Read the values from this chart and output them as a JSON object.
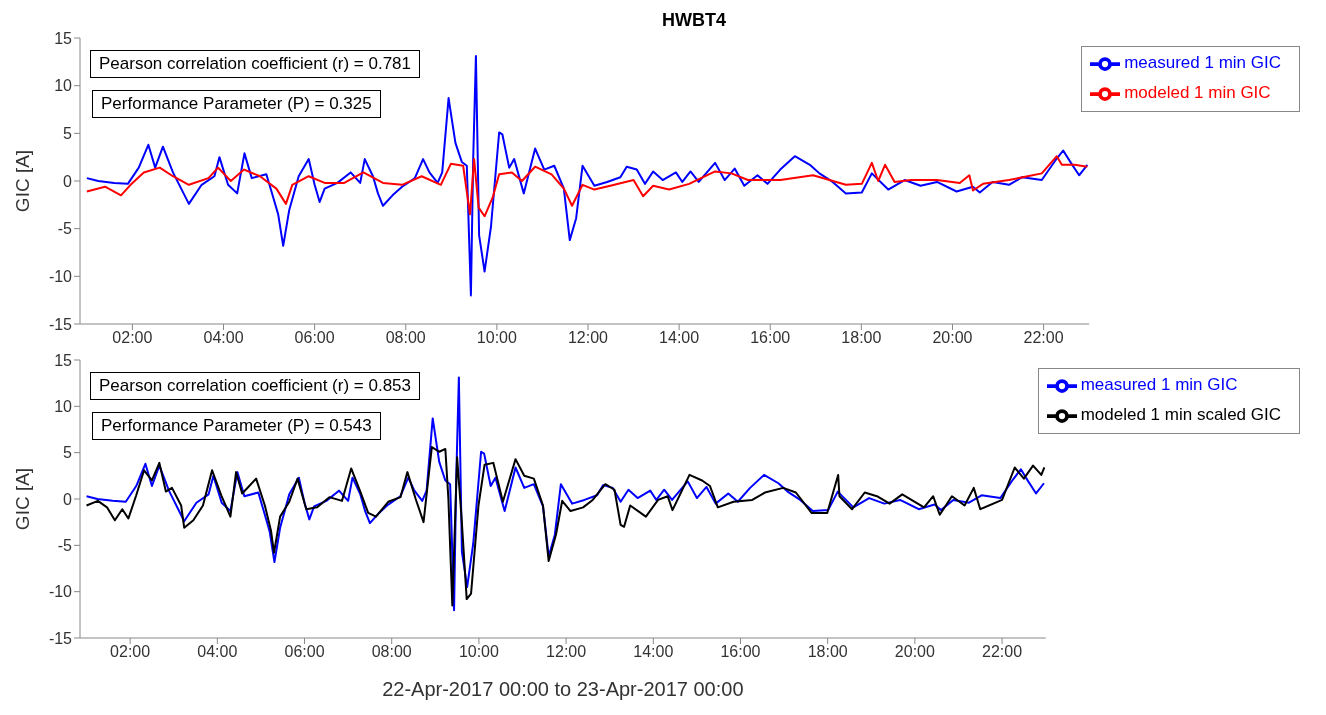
{
  "chart_data": [
    {
      "type": "line",
      "title": "HWBT4",
      "ylabel": "GIC [A]",
      "xlim": [
        0.85,
        23
      ],
      "ylim": [
        -15,
        15
      ],
      "yticks": [
        -15,
        -10,
        -5,
        0,
        5,
        10,
        15
      ],
      "xticks": [
        {
          "value": 2,
          "label": "02:00"
        },
        {
          "value": 4,
          "label": "04:00"
        },
        {
          "value": 6,
          "label": "06:00"
        },
        {
          "value": 8,
          "label": "08:00"
        },
        {
          "value": 10,
          "label": "10:00"
        },
        {
          "value": 12,
          "label": "12:00"
        },
        {
          "value": 14,
          "label": "14:00"
        },
        {
          "value": 16,
          "label": "16:00"
        },
        {
          "value": 18,
          "label": "18:00"
        },
        {
          "value": 20,
          "label": "20:00"
        },
        {
          "value": 22,
          "label": "22:00"
        }
      ],
      "grid": false,
      "legend": "top right",
      "marker": "none",
      "line_style": "solid",
      "annotations": [
        "Pearson correlation coefficient (r) = 0.781",
        "Performance Parameter (P) = 0.325"
      ],
      "series": [
        {
          "name": "measured 1 min GIC",
          "color": "#0000ff",
          "x": [
            1.0,
            1.25,
            1.6,
            1.9,
            2.14,
            2.35,
            2.5,
            2.67,
            2.89,
            3.24,
            3.52,
            3.8,
            3.91,
            4.1,
            4.3,
            4.46,
            4.62,
            4.94,
            5.09,
            5.2,
            5.31,
            5.44,
            5.65,
            5.87,
            6.0,
            6.11,
            6.22,
            6.5,
            6.79,
            7.0,
            7.1,
            7.28,
            7.39,
            7.5,
            7.71,
            7.92,
            8.2,
            8.38,
            8.52,
            8.7,
            8.8,
            8.94,
            9.09,
            9.23,
            9.34,
            9.43,
            9.48,
            9.54,
            9.61,
            9.68,
            9.73,
            9.87,
            10.05,
            10.12,
            10.27,
            10.38,
            10.59,
            10.84,
            11.04,
            11.26,
            11.47,
            11.6,
            11.74,
            11.88,
            12.14,
            12.42,
            12.71,
            12.85,
            13.07,
            13.25,
            13.43,
            13.64,
            13.93,
            14.07,
            14.25,
            14.43,
            14.79,
            15.0,
            15.22,
            15.43,
            15.72,
            15.94,
            16.22,
            16.54,
            16.87,
            17.08,
            17.37,
            17.66,
            18.01,
            18.23,
            18.59,
            18.95,
            19.3,
            19.66,
            20.09,
            20.45,
            20.6,
            20.88,
            21.24,
            21.53,
            21.96,
            22.25,
            22.43,
            22.6,
            22.78,
            22.96
          ],
          "values": [
            0.3,
            0,
            -0.2,
            -0.3,
            1.4,
            3.8,
            1.4,
            3.6,
            0.9,
            -2.4,
            -0.4,
            0.5,
            2.5,
            -0.4,
            -1.3,
            2.9,
            0.3,
            0.7,
            -1.7,
            -3.5,
            -6.8,
            -3.1,
            0.5,
            2.3,
            -0.4,
            -2.2,
            -0.8,
            -0.2,
            0.9,
            -0.2,
            2.3,
            0.5,
            -1.3,
            -2.6,
            -1.5,
            -0.6,
            0.3,
            2.3,
            0.9,
            -0.2,
            0.9,
            8.7,
            4.0,
            2.0,
            1.6,
            -12.0,
            2.3,
            13.1,
            -5.7,
            -7.9,
            -9.5,
            -4.8,
            5.1,
            4.9,
            1.4,
            2.3,
            -1.3,
            3.4,
            1.2,
            1.6,
            -0.8,
            -6.2,
            -3.9,
            1.6,
            -0.5,
            -0.1,
            0.4,
            1.5,
            1.2,
            -0.3,
            1.0,
            0.1,
            0.9,
            -0.1,
            1.0,
            -0.1,
            1.9,
            0.1,
            1.3,
            -0.5,
            0.6,
            -0.3,
            1.2,
            2.6,
            1.7,
            0.8,
            -0.1,
            -1.3,
            -1.2,
            0.8,
            -0.9,
            0.1,
            -0.5,
            -0.1,
            -1.1,
            -0.6,
            -1.2,
            -0.1,
            -0.4,
            0.4,
            0.1,
            2.1,
            3.2,
            1.9,
            0.6,
            1.7
          ]
        },
        {
          "name": "modeled 1 min GIC",
          "color": "#ff0000",
          "x": [
            1.0,
            1.4,
            1.75,
            1.96,
            2.25,
            2.6,
            2.89,
            3.24,
            3.67,
            3.88,
            4.16,
            4.45,
            4.8,
            5.16,
            5.37,
            5.51,
            5.87,
            6.22,
            6.65,
            7.07,
            7.5,
            7.92,
            8.35,
            8.77,
            8.99,
            9.26,
            9.41,
            9.5,
            9.6,
            9.73,
            9.91,
            10.05,
            10.33,
            10.55,
            10.84,
            11.2,
            11.47,
            11.65,
            11.88,
            12.14,
            12.49,
            13.0,
            13.21,
            13.43,
            13.78,
            14.22,
            14.79,
            15.15,
            15.51,
            16.22,
            16.94,
            17.66,
            18.01,
            18.23,
            18.37,
            18.52,
            18.73,
            19.09,
            19.66,
            20.16,
            20.37,
            20.45,
            20.67,
            21.24,
            21.96,
            22.29,
            22.4,
            22.68,
            22.96
          ],
          "values": [
            -1.1,
            -0.6,
            -1.5,
            -0.4,
            0.9,
            1.4,
            0.5,
            -0.4,
            0.3,
            1.4,
            0,
            1.2,
            0.5,
            -0.8,
            -2.4,
            -0.4,
            0.5,
            -0.2,
            -0.2,
            0.9,
            -0.2,
            -0.4,
            0.5,
            -0.4,
            1.8,
            1.6,
            -3.5,
            2.3,
            -2.8,
            -3.7,
            -1.7,
            0.7,
            0.9,
            0,
            1.5,
            0.7,
            -0.8,
            -2.6,
            -0.4,
            -0.9,
            -0.5,
            0.1,
            -1.6,
            -0.5,
            -0.9,
            -0.3,
            1.0,
            0.8,
            0.1,
            0.1,
            0.6,
            -0.4,
            -0.3,
            1.9,
            0,
            1.7,
            -0.1,
            0.1,
            0.1,
            -0.2,
            0.6,
            -1.0,
            -0.3,
            0.1,
            0.8,
            2.6,
            1.7,
            1.7,
            1.5
          ]
        }
      ]
    },
    {
      "type": "line",
      "ylabel": "GIC [A]",
      "xlabel": "22-Apr-2017 00:00 to 23-Apr-2017 00:00",
      "xlim": [
        0.85,
        23
      ],
      "ylim": [
        -15,
        15
      ],
      "yticks": [
        -15,
        -10,
        -5,
        0,
        5,
        10,
        15
      ],
      "xticks": [
        {
          "value": 2,
          "label": "02:00"
        },
        {
          "value": 4,
          "label": "04:00"
        },
        {
          "value": 6,
          "label": "06:00"
        },
        {
          "value": 8,
          "label": "08:00"
        },
        {
          "value": 10,
          "label": "10:00"
        },
        {
          "value": 12,
          "label": "12:00"
        },
        {
          "value": 14,
          "label": "14:00"
        },
        {
          "value": 16,
          "label": "16:00"
        },
        {
          "value": 18,
          "label": "18:00"
        },
        {
          "value": 20,
          "label": "20:00"
        },
        {
          "value": 22,
          "label": "22:00"
        }
      ],
      "grid": false,
      "legend": "top right",
      "marker": "none",
      "line_style": "solid",
      "annotations": [
        "Pearson correlation coefficient (r) = 0.853",
        "Performance Parameter (P) = 0.543"
      ],
      "series": [
        {
          "name": "measured 1 min GIC",
          "color": "#0000ff",
          "x": [
            1.0,
            1.25,
            1.6,
            1.9,
            2.14,
            2.35,
            2.5,
            2.67,
            2.89,
            3.24,
            3.52,
            3.8,
            3.91,
            4.1,
            4.3,
            4.46,
            4.62,
            4.94,
            5.09,
            5.2,
            5.31,
            5.44,
            5.65,
            5.87,
            6.0,
            6.11,
            6.22,
            6.5,
            6.79,
            7.0,
            7.1,
            7.28,
            7.39,
            7.5,
            7.71,
            7.92,
            8.2,
            8.38,
            8.52,
            8.7,
            8.8,
            8.94,
            9.09,
            9.23,
            9.34,
            9.43,
            9.48,
            9.54,
            9.61,
            9.68,
            9.73,
            9.87,
            10.05,
            10.12,
            10.27,
            10.38,
            10.59,
            10.84,
            11.04,
            11.26,
            11.47,
            11.6,
            11.74,
            11.88,
            12.14,
            12.42,
            12.71,
            12.85,
            13.07,
            13.25,
            13.43,
            13.64,
            13.93,
            14.07,
            14.25,
            14.43,
            14.79,
            15.0,
            15.22,
            15.43,
            15.72,
            15.94,
            16.22,
            16.54,
            16.87,
            17.08,
            17.37,
            17.66,
            18.01,
            18.23,
            18.59,
            18.95,
            19.3,
            19.66,
            20.09,
            20.45,
            20.6,
            20.88,
            21.24,
            21.53,
            21.96,
            22.25,
            22.43,
            22.6,
            22.78,
            22.96
          ],
          "values": [
            0.3,
            0,
            -0.2,
            -0.3,
            1.4,
            3.8,
            1.4,
            3.6,
            0.9,
            -2.4,
            -0.4,
            0.5,
            2.5,
            -0.4,
            -1.3,
            2.9,
            0.3,
            0.7,
            -1.7,
            -3.5,
            -6.8,
            -3.1,
            0.5,
            2.3,
            -0.4,
            -2.2,
            -0.8,
            -0.2,
            0.9,
            -0.2,
            2.3,
            0.5,
            -1.3,
            -2.6,
            -1.5,
            -0.6,
            0.3,
            2.3,
            0.9,
            -0.2,
            0.9,
            8.7,
            4.0,
            2.0,
            1.6,
            -12.0,
            2.3,
            13.1,
            -5.7,
            -7.9,
            -9.5,
            -4.8,
            5.1,
            4.9,
            1.4,
            2.3,
            -1.3,
            3.4,
            1.2,
            1.6,
            -0.8,
            -6.2,
            -3.9,
            1.6,
            -0.5,
            -0.1,
            0.4,
            1.5,
            1.2,
            -0.3,
            1.0,
            0.1,
            0.9,
            -0.1,
            1.0,
            -0.1,
            1.9,
            0.1,
            1.3,
            -0.5,
            0.6,
            -0.3,
            1.2,
            2.6,
            1.7,
            0.8,
            -0.1,
            -1.3,
            -1.2,
            0.8,
            -0.9,
            0.1,
            -0.5,
            -0.1,
            -1.1,
            -0.6,
            -1.2,
            -0.1,
            -0.4,
            0.4,
            0.1,
            2.1,
            3.2,
            1.9,
            0.6,
            1.7
          ]
        },
        {
          "name": "modeled 1 min scaled GIC",
          "color": "#000000",
          "x": [
            1.0,
            1.26,
            1.47,
            1.65,
            1.82,
            1.96,
            2.14,
            2.32,
            2.5,
            2.67,
            2.82,
            2.96,
            3.17,
            3.24,
            3.45,
            3.67,
            3.88,
            4.09,
            4.3,
            4.43,
            4.57,
            4.89,
            5.09,
            5.23,
            5.3,
            5.44,
            5.65,
            5.84,
            6.04,
            6.29,
            6.57,
            6.86,
            7.07,
            7.28,
            7.46,
            7.64,
            7.92,
            8.2,
            8.36,
            8.55,
            8.73,
            8.92,
            9.09,
            9.23,
            9.3,
            9.39,
            9.5,
            9.6,
            9.72,
            9.82,
            9.99,
            10.13,
            10.33,
            10.55,
            10.84,
            11.04,
            11.26,
            11.47,
            11.6,
            11.77,
            11.91,
            12.1,
            12.39,
            12.61,
            12.9,
            13.11,
            13.25,
            13.33,
            13.47,
            13.83,
            14.11,
            14.33,
            14.44,
            14.83,
            15.12,
            15.3,
            15.48,
            15.84,
            16.27,
            16.56,
            16.98,
            17.27,
            17.63,
            17.99,
            18.24,
            18.27,
            18.56,
            18.85,
            19.13,
            19.42,
            19.71,
            20.21,
            20.42,
            20.57,
            20.85,
            21.14,
            21.35,
            21.5,
            22.0,
            22.29,
            22.5,
            22.71,
            22.9,
            22.97
          ],
          "values": [
            -0.7,
            -0.2,
            -0.9,
            -2.3,
            -1.1,
            -2.1,
            0.4,
            3.1,
            2.0,
            3.9,
            0.8,
            1.2,
            -0.7,
            -3.1,
            -2.3,
            -0.7,
            3.1,
            0.4,
            -1.9,
            2.9,
            0.6,
            2.2,
            -0.7,
            -3.4,
            -5.8,
            -1.9,
            -0.3,
            2.2,
            -1.1,
            -0.9,
            0.2,
            -0.2,
            3.3,
            0.8,
            -1.5,
            -1.9,
            -0.3,
            0.2,
            2.9,
            0,
            -2.5,
            5.6,
            5.1,
            5.4,
            0,
            -11.5,
            4.5,
            -1.9,
            -10.8,
            -10.2,
            -0.7,
            3.7,
            3.9,
            -0.3,
            4.3,
            2.5,
            2.2,
            -0.7,
            -6.7,
            -3.8,
            -0.2,
            -1.3,
            -0.9,
            -0.1,
            1.6,
            1.0,
            -2.8,
            -3.0,
            -0.7,
            -1.9,
            -0.1,
            0.3,
            -1.2,
            2.6,
            2.0,
            1.4,
            -0.9,
            -0.3,
            -0.1,
            0.7,
            1.2,
            0.7,
            -1.5,
            -1.5,
            2.6,
            0.3,
            -1.1,
            0.7,
            0.3,
            -0.5,
            0.5,
            -0.9,
            0.3,
            -1.7,
            0.3,
            -0.7,
            1.2,
            -1.1,
            -0.1,
            3.4,
            2.2,
            3.6,
            2.6,
            3.4
          ]
        }
      ]
    }
  ]
}
